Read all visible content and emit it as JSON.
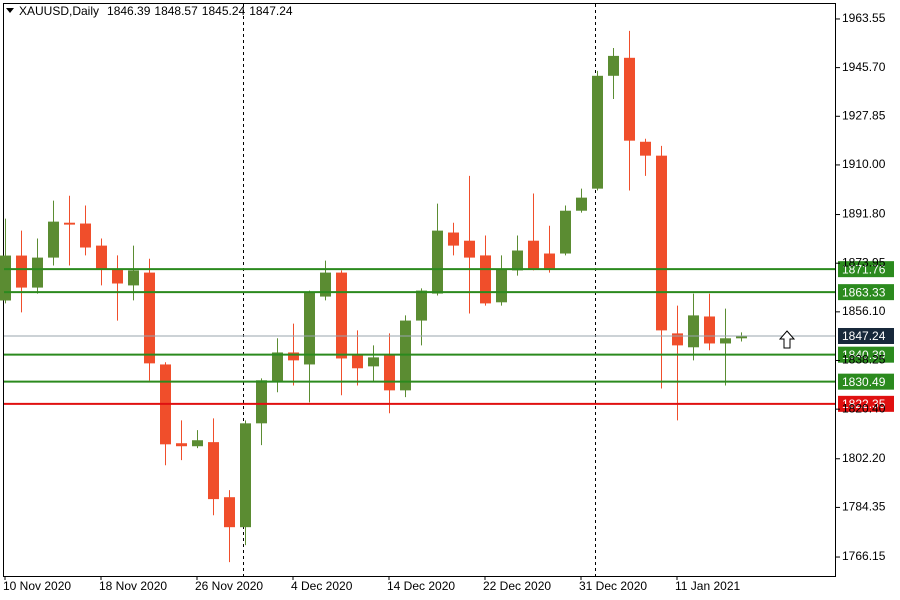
{
  "chart_data": {
    "type": "candlestick",
    "title": "XAUUSD,Daily",
    "categories": [
      "10 Nov 2020",
      null,
      null,
      null,
      null,
      null,
      "18 Nov 2020",
      null,
      null,
      null,
      null,
      null,
      "26 Nov 2020",
      null,
      null,
      null,
      null,
      null,
      "4 Dec 2020",
      null,
      null,
      null,
      null,
      null,
      "14 Dec 2020",
      null,
      null,
      null,
      null,
      null,
      "22 Dec 2020",
      null,
      null,
      null,
      null,
      null,
      "31 Dec 2020",
      null,
      null,
      null,
      null,
      null,
      "11 Jan 2021",
      null,
      null,
      null,
      null
    ],
    "open": [
      1860.27,
      1876.75,
      1865.0,
      1876.0,
      1888.8,
      1888.5,
      1880.4,
      1872.0,
      1865.8,
      1870.5,
      1836.8,
      1807.9,
      1806.8,
      1808.3,
      1788.1,
      1777.1,
      1815.2,
      1830.6,
      1841.2,
      1836.8,
      1861.7,
      1870.5,
      1840.1,
      1836.1,
      1840.1,
      1827.3,
      1852.9,
      1862.8,
      1885.2,
      1882.2,
      1876.8,
      1859.6,
      1871.3,
      1882.2,
      1877.5,
      1877.5,
      1893.2,
      1901.3,
      1942.7,
      1949.3,
      1918.5,
      1913.4,
      1848.2,
      1843.1,
      1854.4,
      1844.5,
      1846.39
    ],
    "high": [
      1890.3,
      1885.9,
      1883.0,
      1896.9,
      1898.7,
      1895.1,
      1883.0,
      1876.8,
      1880.4,
      1875.6,
      1837.6,
      1816.3,
      1812.7,
      1817.0,
      1790.7,
      1816.3,
      1831.7,
      1846.4,
      1851.8,
      1863.9,
      1874.9,
      1871.3,
      1849.3,
      1843.8,
      1848.2,
      1854.8,
      1864.7,
      1895.8,
      1888.8,
      1906.0,
      1884.1,
      1876.8,
      1884.1,
      1899.5,
      1887.7,
      1895.1,
      1901.3,
      1944.5,
      1952.9,
      1959.2,
      1919.6,
      1917.0,
      1858.4,
      1862.8,
      1862.8,
      1857.3,
      1848.57
    ],
    "low": [
      1859.2,
      1855.9,
      1862.8,
      1873.1,
      1873.1,
      1876.8,
      1865.8,
      1852.9,
      1860.3,
      1830.9,
      1799.8,
      1801.7,
      1806.1,
      1781.5,
      1764.3,
      1770.5,
      1807.2,
      1826.6,
      1829.1,
      1822.9,
      1860.3,
      1825.5,
      1829.1,
      1830.2,
      1818.9,
      1824.8,
      1843.8,
      1862.1,
      1876.8,
      1855.5,
      1858.4,
      1858.4,
      1869.4,
      1871.3,
      1870.5,
      1876.8,
      1892.5,
      1900.6,
      1934.2,
      1900.6,
      1906.0,
      1828.0,
      1816.3,
      1838.3,
      1842.0,
      1829.1,
      1845.24
    ],
    "close": [
      1876.75,
      1865.0,
      1876.0,
      1889.2,
      1888.1,
      1879.7,
      1872.0,
      1866.5,
      1871.3,
      1837.2,
      1807.5,
      1806.8,
      1809.0,
      1787.4,
      1777.1,
      1815.2,
      1831.0,
      1841.2,
      1838.3,
      1863.2,
      1870.5,
      1839.0,
      1835.4,
      1839.4,
      1827.3,
      1852.9,
      1863.9,
      1885.9,
      1880.4,
      1876.0,
      1859.2,
      1872.0,
      1878.6,
      1872.0,
      1872.0,
      1893.2,
      1898.0,
      1942.7,
      1950.0,
      1918.9,
      1913.4,
      1849.3,
      1843.8,
      1854.8,
      1844.5,
      1846.4,
      1847.24
    ],
    "up_color": "#5b8c32",
    "down_color": "#f04e2b",
    "ylim": [
      1759.19,
      1969.04
    ],
    "yticks": [
      1963.55,
      {
        "value": 1945.7,
        "label": "1945.70"
      },
      1927.85,
      {
        "value": 1910,
        "label": "1910.00"
      },
      {
        "value": 1891.8,
        "label": "1891.80"
      },
      1873.95,
      {
        "value": 1856.1,
        "label": "1856.10"
      },
      1838.25,
      {
        "value": 1820.4,
        "label": "1820.40"
      },
      {
        "value": 1802.2,
        "label": "1802.20"
      },
      1784.35,
      1766.15
    ],
    "levels": [
      {
        "value": 1871.76,
        "color": "#2b8a1e"
      },
      {
        "value": 1863.33,
        "color": "#2b8a1e"
      },
      {
        "value": 1840.39,
        "color": "#2b8a1e"
      },
      {
        "value": 1830.49,
        "color": "#2b8a1e"
      },
      {
        "value": 1822.35,
        "color": "#e01010"
      }
    ],
    "price_line_color": "#9aa4ad",
    "price_label_color": "#17283a"
  }
}
